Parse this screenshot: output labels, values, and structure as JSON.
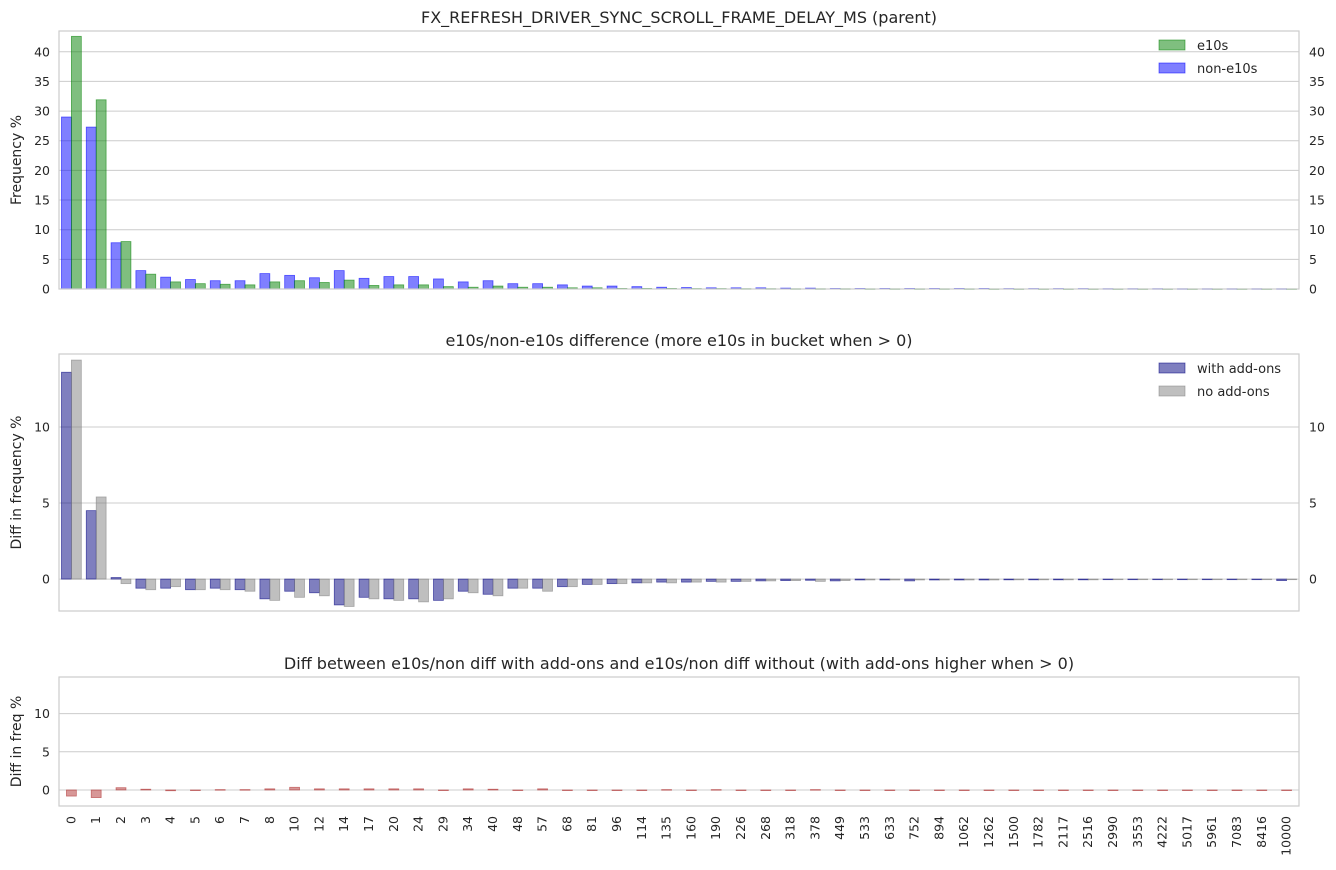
{
  "chart_data": [
    {
      "type": "bar",
      "title": "FX_REFRESH_DRIVER_SYNC_SCROLL_FRAME_DELAY_MS (parent)",
      "ylabel": "Frequency %",
      "xlabel": "",
      "ylim": [
        0,
        43.5
      ],
      "yticks": [
        0,
        5,
        10,
        15,
        20,
        25,
        30,
        35,
        40
      ],
      "right_ticks": true,
      "grid": true,
      "legend": "top-right",
      "categories": [
        "0",
        "1",
        "2",
        "3",
        "4",
        "5",
        "6",
        "7",
        "8",
        "10",
        "12",
        "14",
        "17",
        "20",
        "24",
        "29",
        "34",
        "40",
        "48",
        "57",
        "68",
        "81",
        "96",
        "114",
        "135",
        "160",
        "190",
        "226",
        "268",
        "318",
        "378",
        "449",
        "533",
        "633",
        "752",
        "894",
        "1062",
        "1262",
        "1500",
        "1782",
        "2117",
        "2516",
        "2990",
        "3553",
        "4222",
        "5017",
        "5961",
        "7083",
        "8416",
        "10000"
      ],
      "series": [
        {
          "name": "non-e10s",
          "color": "#0000ff",
          "values": [
            29.0,
            27.3,
            7.8,
            3.1,
            2.0,
            1.6,
            1.4,
            1.4,
            2.6,
            2.3,
            1.9,
            3.1,
            1.8,
            2.1,
            2.1,
            1.7,
            1.2,
            1.4,
            0.9,
            0.9,
            0.7,
            0.5,
            0.5,
            0.4,
            0.3,
            0.25,
            0.2,
            0.2,
            0.2,
            0.15,
            0.15,
            0.1,
            0.1,
            0.1,
            0.1,
            0.1,
            0.1,
            0.1,
            0.08,
            0.08,
            0.08,
            0.08,
            0.06,
            0.06,
            0.06,
            0.05,
            0.05,
            0.05,
            0.05,
            0.05
          ]
        },
        {
          "name": "e10s",
          "color": "#008000",
          "values": [
            42.6,
            31.9,
            8.0,
            2.5,
            1.2,
            0.9,
            0.8,
            0.7,
            1.2,
            1.4,
            1.1,
            1.5,
            0.6,
            0.7,
            0.7,
            0.4,
            0.3,
            0.5,
            0.3,
            0.3,
            0.2,
            0.2,
            0.1,
            0.1,
            0.1,
            0.08,
            0.08,
            0.06,
            0.06,
            0.05,
            0.05,
            0.05,
            0.04,
            0.04,
            0.04,
            0.04,
            0.04,
            0.03,
            0.03,
            0.03,
            0.03,
            0.03,
            0.03,
            0.03,
            0.03,
            0.03,
            0.03,
            0.03,
            0.03,
            0.03
          ]
        }
      ]
    },
    {
      "type": "bar",
      "title": "e10s/non-e10s difference (more e10s in bucket when > 0)",
      "ylabel": "Diff in frequency %",
      "xlabel": "",
      "ylim": [
        -2.1,
        14.8
      ],
      "yticks": [
        0,
        5,
        10
      ],
      "right_ticks": true,
      "grid": true,
      "legend": "top-right",
      "series": [
        {
          "name": "with add-ons",
          "color": "#000080",
          "values": [
            13.6,
            4.5,
            0.1,
            -0.6,
            -0.6,
            -0.7,
            -0.6,
            -0.7,
            -1.3,
            -0.8,
            -0.9,
            -1.7,
            -1.2,
            -1.3,
            -1.3,
            -1.4,
            -0.8,
            -1.0,
            -0.6,
            -0.6,
            -0.5,
            -0.35,
            -0.3,
            -0.25,
            -0.2,
            -0.2,
            -0.15,
            -0.15,
            -0.12,
            -0.1,
            -0.08,
            -0.12,
            -0.06,
            -0.06,
            -0.12,
            -0.06,
            -0.06,
            -0.06,
            -0.05,
            -0.05,
            -0.05,
            -0.05,
            -0.03,
            -0.03,
            -0.03,
            -0.03,
            -0.03,
            -0.03,
            -0.03,
            -0.1
          ]
        },
        {
          "name": "no add-ons",
          "color": "#808080",
          "values": [
            14.4,
            5.4,
            -0.3,
            -0.7,
            -0.5,
            -0.7,
            -0.7,
            -0.8,
            -1.4,
            -1.2,
            -1.1,
            -1.8,
            -1.3,
            -1.4,
            -1.5,
            -1.3,
            -0.9,
            -1.1,
            -0.6,
            -0.8,
            -0.5,
            -0.35,
            -0.3,
            -0.25,
            -0.25,
            -0.2,
            -0.2,
            -0.15,
            -0.12,
            -0.1,
            -0.15,
            -0.1,
            -0.06,
            -0.06,
            -0.06,
            -0.06,
            -0.06,
            -0.06,
            -0.05,
            -0.05,
            -0.05,
            -0.05,
            -0.03,
            -0.03,
            -0.03,
            -0.03,
            -0.03,
            -0.03,
            -0.03,
            -0.03
          ]
        }
      ]
    },
    {
      "type": "bar",
      "title": "Diff between e10s/non diff with add-ons and e10s/non diff without (with add-ons higher when > 0)",
      "ylabel": "Diff in freq %",
      "xlabel": "",
      "ylim": [
        -2.1,
        14.8
      ],
      "yticks": [
        0,
        5,
        10
      ],
      "right_ticks": false,
      "grid": true,
      "show_xticks": true,
      "series": [
        {
          "name": "",
          "color": "#b03030",
          "values": [
            -0.8,
            -1.0,
            0.3,
            0.1,
            -0.1,
            0.0,
            0.05,
            0.05,
            0.15,
            0.35,
            0.15,
            0.15,
            0.15,
            0.15,
            0.15,
            -0.05,
            0.15,
            0.1,
            0.0,
            0.15,
            0.0,
            0.0,
            0.0,
            0.0,
            0.05,
            0.0,
            0.05,
            0.0,
            0.0,
            0.0,
            0.05,
            0.0,
            0.0,
            0.0,
            -0.06,
            0.0,
            0.0,
            0.0,
            0.0,
            0.0,
            0.0,
            0.0,
            0.0,
            0.0,
            0.0,
            0.0,
            0.0,
            0.0,
            0.0,
            -0.06
          ]
        }
      ]
    }
  ]
}
